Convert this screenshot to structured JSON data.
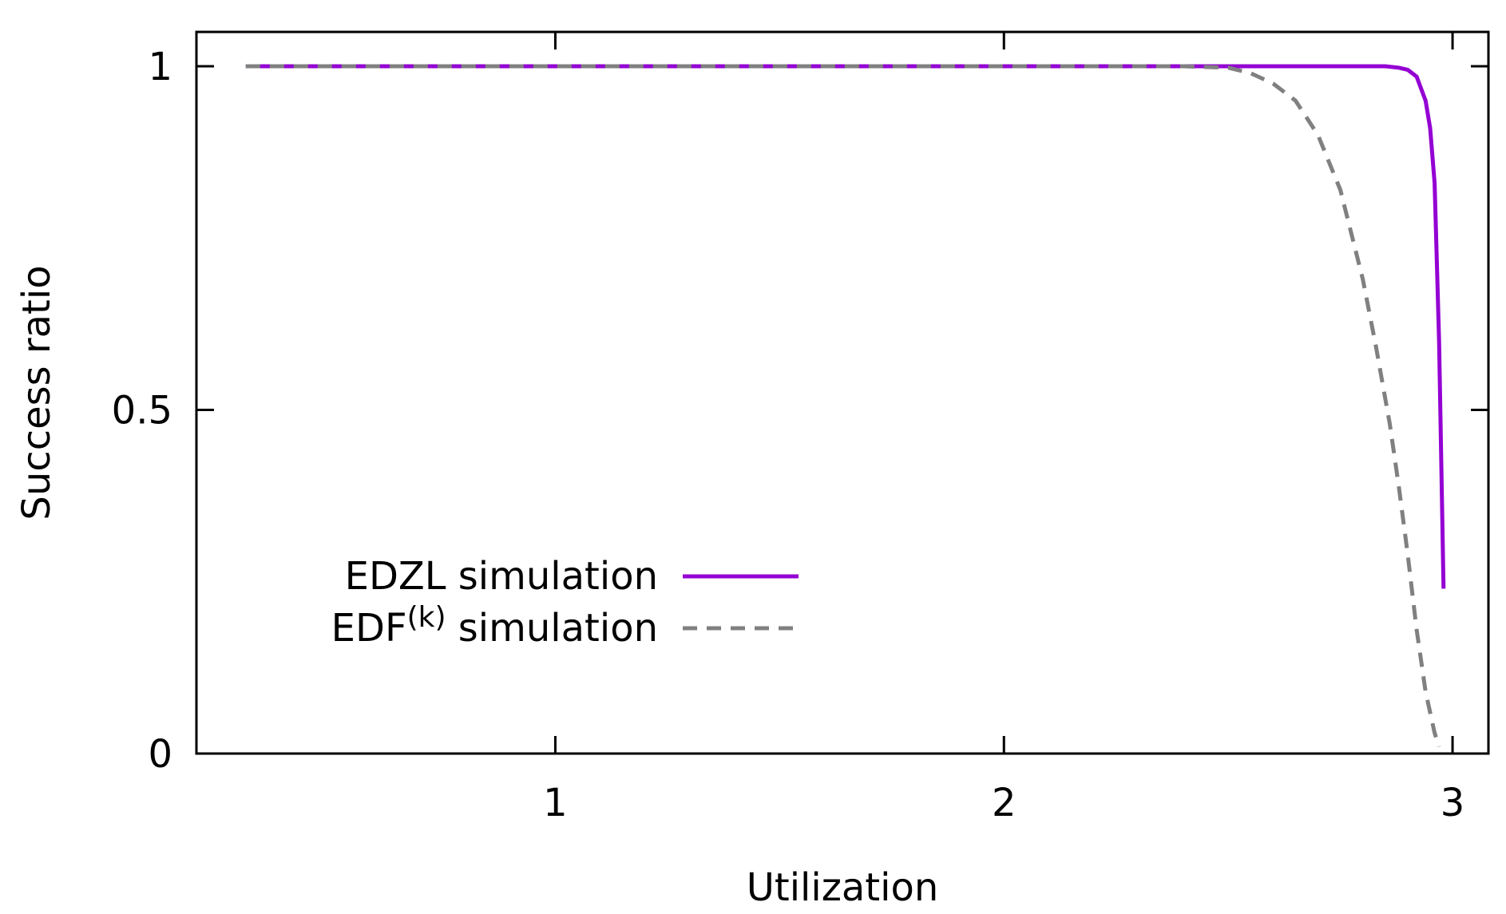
{
  "chart_data": {
    "type": "line",
    "title": "",
    "xlabel": "Utilization",
    "ylabel": "Success ratio",
    "xlim": [
      0.2,
      3.08
    ],
    "ylim": [
      0,
      1.05
    ],
    "x_ticks": [
      {
        "value": 1,
        "label": "1"
      },
      {
        "value": 2,
        "label": "2"
      },
      {
        "value": 3,
        "label": "3"
      }
    ],
    "y_ticks": [
      {
        "value": 0,
        "label": "0"
      },
      {
        "value": 0.5,
        "label": "0.5"
      },
      {
        "value": 1,
        "label": "1"
      }
    ],
    "grid": false,
    "legend_position": "bottom-left",
    "series": [
      {
        "name": "EDZL simulation",
        "legend_base": "EDZL simulation",
        "legend_sup": "",
        "legend_suffix": "",
        "color": "#9400D3",
        "dash": "solid",
        "x": [
          0.31,
          0.5,
          1.0,
          1.5,
          2.0,
          2.5,
          2.7,
          2.85,
          2.88,
          2.9,
          2.92,
          2.94,
          2.95,
          2.96,
          2.97,
          2.98
        ],
        "y": [
          1.0,
          1.0,
          1.0,
          1.0,
          1.0,
          1.0,
          1.0,
          1.0,
          0.998,
          0.995,
          0.985,
          0.95,
          0.91,
          0.83,
          0.6,
          0.24
        ]
      },
      {
        "name": "EDF(k) simulation",
        "legend_base": "EDF",
        "legend_sup": "(k)",
        "legend_suffix": " simulation",
        "color": "#808080",
        "dash": "dashed",
        "x": [
          0.31,
          0.5,
          1.0,
          1.5,
          2.0,
          2.4,
          2.5,
          2.55,
          2.6,
          2.65,
          2.7,
          2.75,
          2.8,
          2.83,
          2.86,
          2.88,
          2.9,
          2.92,
          2.94,
          2.96,
          2.97
        ],
        "y": [
          1.0,
          1.0,
          1.0,
          1.0,
          1.0,
          1.0,
          0.998,
          0.99,
          0.975,
          0.95,
          0.9,
          0.82,
          0.69,
          0.59,
          0.48,
          0.39,
          0.29,
          0.18,
          0.09,
          0.03,
          0.01
        ]
      }
    ]
  }
}
